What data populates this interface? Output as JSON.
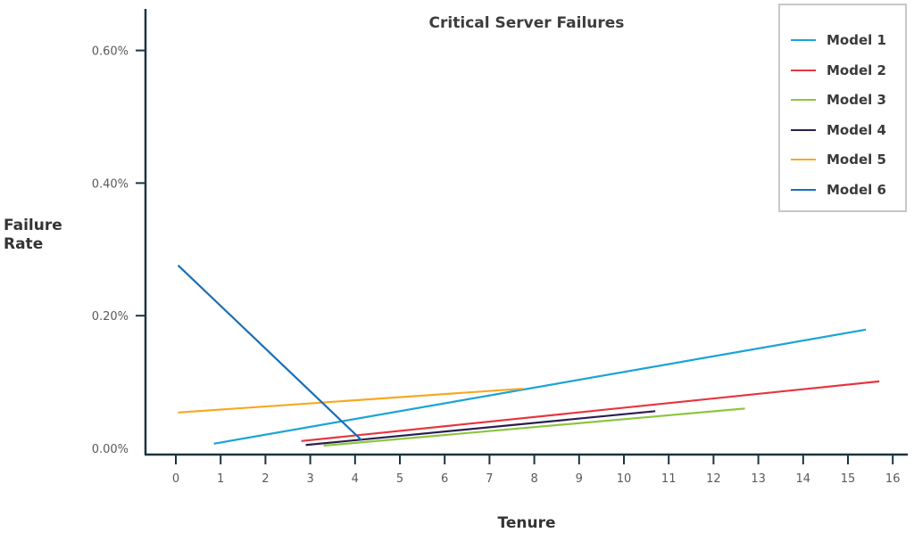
{
  "chart_data": {
    "type": "line",
    "title": "Critical Server Failures",
    "xlabel": "Tenure",
    "ylabel": "Failure Rate",
    "xlim": [
      0,
      16
    ],
    "ylim": [
      0,
      0.6
    ],
    "x_ticks": [
      "0",
      "1",
      "2",
      "3",
      "4",
      "5",
      "6",
      "7",
      "8",
      "9",
      "10",
      "11",
      "12",
      "13",
      "14",
      "15",
      "16"
    ],
    "y_ticks": [
      "0.00%",
      "0.20%",
      "0.40%",
      "0.60%"
    ],
    "y_tick_values": [
      0,
      0.2,
      0.4,
      0.6
    ],
    "grid": false,
    "legend_position": "top-right",
    "series": [
      {
        "name": "Model 1",
        "color": "#1ba3d6",
        "x": [
          0.85,
          15.4
        ],
        "y": [
          0.007,
          0.179
        ]
      },
      {
        "name": "Model 2",
        "color": "#e8343f",
        "x": [
          2.8,
          15.7
        ],
        "y": [
          0.011,
          0.101
        ]
      },
      {
        "name": "Model 3",
        "color": "#8cc63f",
        "x": [
          3.3,
          12.7
        ],
        "y": [
          0.004,
          0.06
        ]
      },
      {
        "name": "Model 4",
        "color": "#2a1f4f",
        "x": [
          2.9,
          10.7
        ],
        "y": [
          0.005,
          0.056
        ]
      },
      {
        "name": "Model 5",
        "color": "#f7a823",
        "x": [
          0.05,
          7.75
        ],
        "y": [
          0.054,
          0.09
        ]
      },
      {
        "name": "Model 6",
        "color": "#1a6fb5",
        "x": [
          0.05,
          4.15
        ],
        "y": [
          0.276,
          0.012
        ]
      }
    ]
  },
  "legend": {
    "items": [
      {
        "label": "Model 1",
        "color": "#1ba3d6"
      },
      {
        "label": "Model 2",
        "color": "#e8343f"
      },
      {
        "label": "Model 3",
        "color": "#8cc63f"
      },
      {
        "label": "Model 4",
        "color": "#2a1f4f"
      },
      {
        "label": "Model 5",
        "color": "#f7a823"
      },
      {
        "label": "Model 6",
        "color": "#1a6fb5"
      }
    ]
  },
  "axis_color": "#1e3340"
}
